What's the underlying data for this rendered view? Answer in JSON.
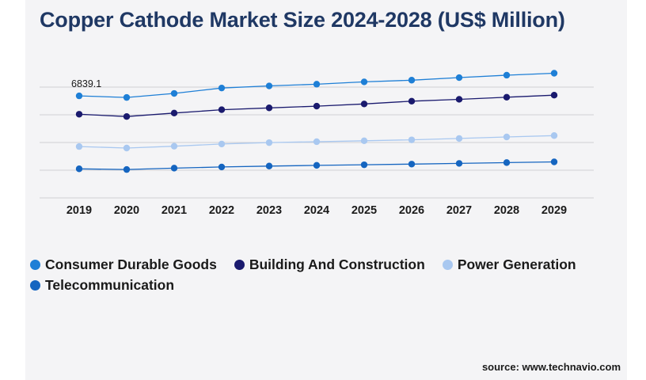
{
  "title": "Copper Cathode Market Size 2024-2028 (US$ Million)",
  "source": "source: www.technavio.com",
  "chart_data": {
    "type": "line",
    "title": "Copper Cathode Market Size 2024-2028 (US$ Million)",
    "categories": [
      "2019",
      "2020",
      "2021",
      "2022",
      "2023",
      "2024",
      "2025",
      "2026",
      "2027",
      "2028",
      "2029"
    ],
    "annotation": {
      "label": "6839.1",
      "series": 0,
      "index": 0
    },
    "grid": true,
    "legend_position": "bottom",
    "series": [
      {
        "name": "Consumer Durable Goods",
        "color": "#1e7fd6",
        "values": [
          6839.1,
          6700,
          7050,
          7520,
          7700,
          7850,
          8050,
          8200,
          8420,
          8630,
          8800
        ]
      },
      {
        "name": "Building And Construction",
        "color": "#1a1a6e",
        "values": [
          5250,
          5050,
          5350,
          5640,
          5800,
          5950,
          6140,
          6380,
          6540,
          6720,
          6900
        ]
      },
      {
        "name": "Power Generation",
        "color": "#a9c8f0",
        "values": [
          2450,
          2320,
          2480,
          2670,
          2790,
          2870,
          2950,
          3030,
          3150,
          3280,
          3400
        ]
      },
      {
        "name": "Telecommunication",
        "color": "#1565c0",
        "values": [
          520,
          460,
          580,
          680,
          760,
          820,
          870,
          930,
          990,
          1060,
          1120
        ]
      }
    ],
    "ylim": [
      -2000,
      10000
    ]
  }
}
